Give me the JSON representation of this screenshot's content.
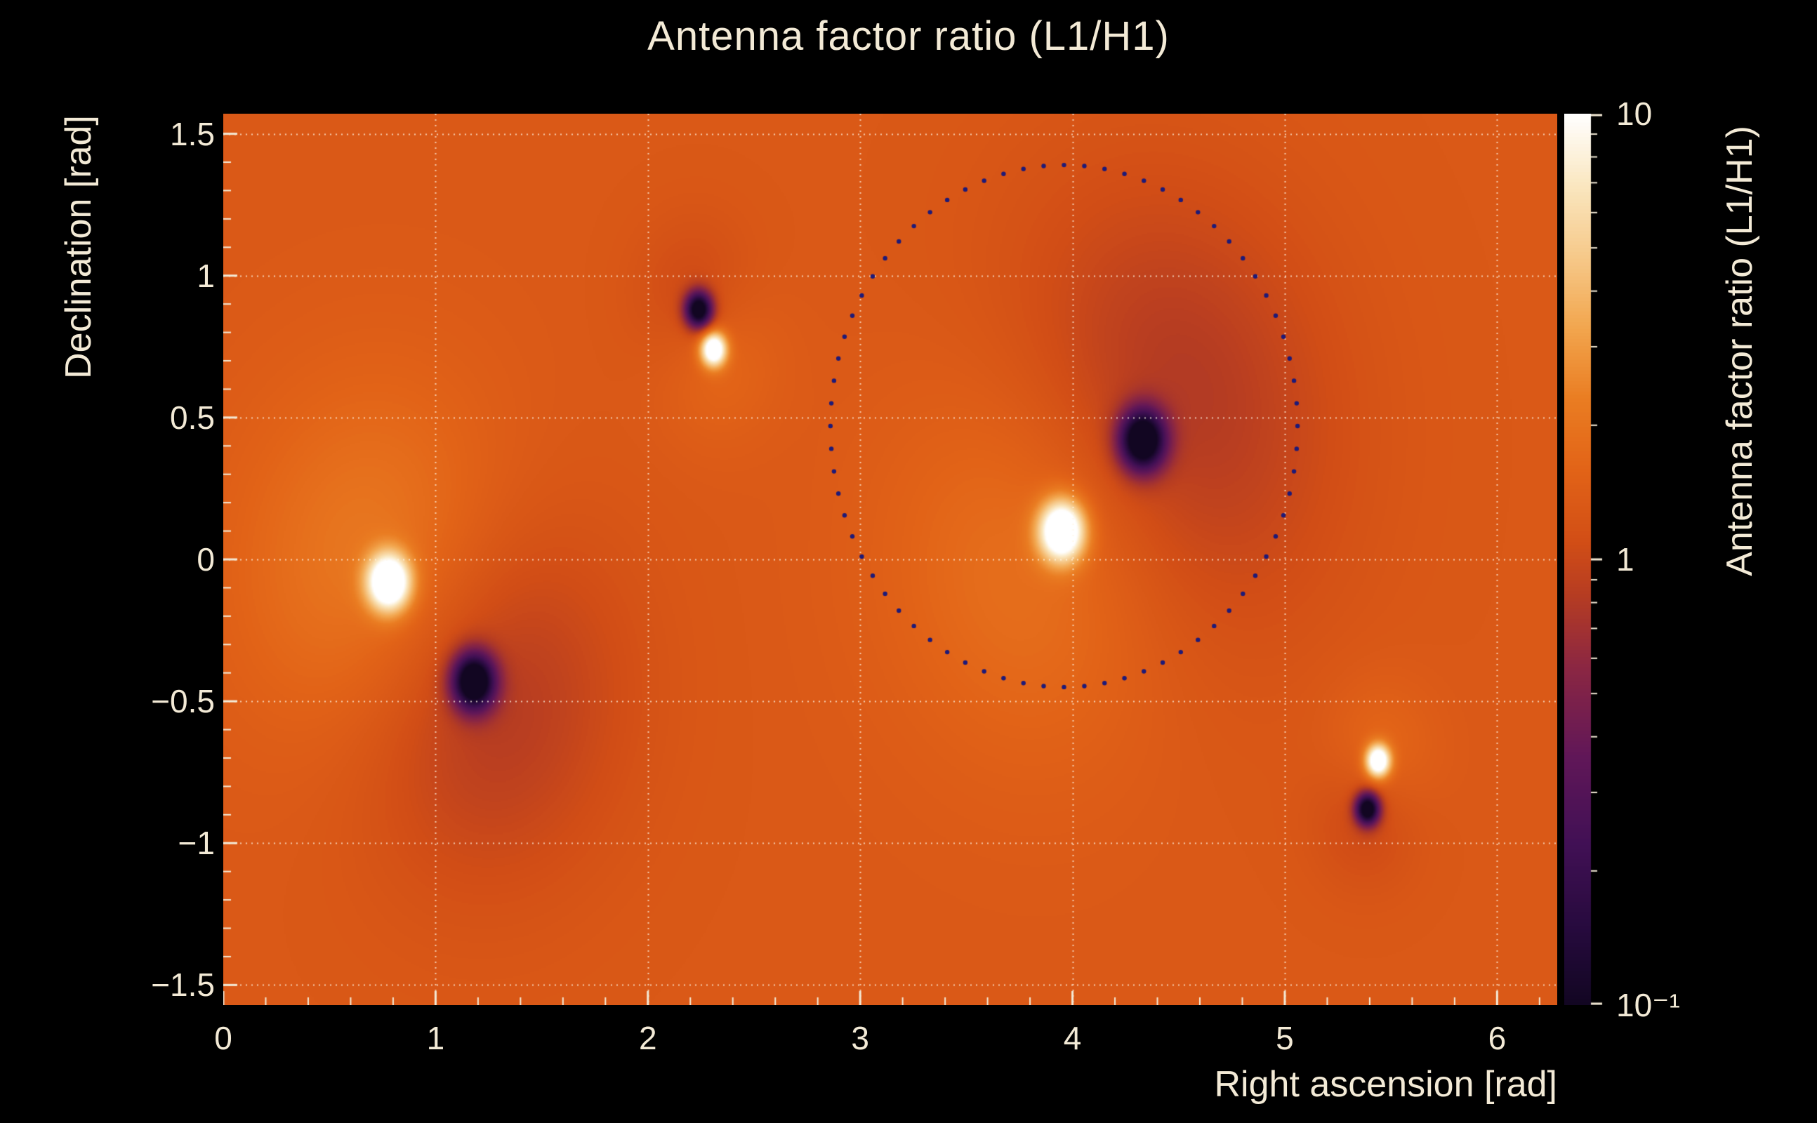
{
  "title": "Antenna factor ratio (L1/H1)",
  "colors": {
    "background": "#000000",
    "foreground_text": "#f3ead6",
    "grid": "#fff6e6",
    "tick": "#f3ead6",
    "contour_dots": "#1e1a78"
  },
  "chart_data": {
    "type": "heatmap",
    "title": "Antenna factor ratio (L1/H1)",
    "xlabel": "Right ascension [rad]",
    "ylabel": "Declination [rad]",
    "zlabel": "Antenna factor ratio (L1/H1)",
    "x_range": [
      0,
      6.2832
    ],
    "y_range": [
      -1.5708,
      1.5708
    ],
    "z_range": [
      0.1,
      10
    ],
    "z_scale": "log",
    "x_ticks": {
      "values": [
        0,
        1,
        2,
        3,
        4,
        5,
        6
      ],
      "labels": [
        "0",
        "1",
        "2",
        "3",
        "4",
        "5",
        "6"
      ],
      "minor_step": 0.2
    },
    "y_ticks": {
      "values": [
        1.5,
        1,
        0.5,
        0,
        -0.5,
        -1,
        -1.5
      ],
      "labels": [
        "1.5",
        "1",
        "0.5",
        "0",
        "−0.5",
        "−1",
        "−1.5"
      ],
      "minor_step": 0.1
    },
    "grid": {
      "x_lines": [
        1,
        2,
        3,
        4,
        5,
        6
      ],
      "y_lines": [
        -1.5,
        -1,
        -0.5,
        0,
        0.5,
        1,
        1.5
      ],
      "on": true
    },
    "colorbar": {
      "tick_values": [
        10,
        1,
        0.1
      ],
      "tick_labels": [
        "10",
        "1",
        "10⁻¹"
      ],
      "minor_tick_values": [
        0.2,
        0.3,
        0.4,
        0.5,
        0.6,
        0.7,
        0.8,
        0.9,
        2,
        3,
        4,
        5,
        6,
        7,
        8,
        9
      ]
    },
    "base_log10": 0.12,
    "features": [
      {
        "kind": "maximum",
        "x": 0.78,
        "y": -0.08,
        "core_amp": 1.3,
        "core_sigma": 0.07,
        "halo_amp": 0.3,
        "halo_sigma": 0.45
      },
      {
        "kind": "minimum",
        "x": 1.18,
        "y": -0.43,
        "core_amp": -1.4,
        "core_sigma": 0.07,
        "halo_amp": -0.3,
        "halo_sigma": 0.45
      },
      {
        "kind": "minimum",
        "x": 2.24,
        "y": 0.88,
        "core_amp": -1.3,
        "core_sigma": 0.045,
        "halo_amp": -0.18,
        "halo_sigma": 0.2
      },
      {
        "kind": "maximum",
        "x": 2.31,
        "y": 0.74,
        "core_amp": 1.2,
        "core_sigma": 0.042,
        "halo_amp": 0.18,
        "halo_sigma": 0.2
      },
      {
        "kind": "maximum",
        "x": 3.95,
        "y": 0.1,
        "core_amp": 1.3,
        "core_sigma": 0.075,
        "halo_amp": 0.32,
        "halo_sigma": 0.5
      },
      {
        "kind": "minimum",
        "x": 4.33,
        "y": 0.42,
        "core_amp": -1.4,
        "core_sigma": 0.075,
        "halo_amp": -0.35,
        "halo_sigma": 0.55
      },
      {
        "kind": "maximum",
        "x": 5.44,
        "y": -0.71,
        "core_amp": 1.2,
        "core_sigma": 0.04,
        "halo_amp": 0.16,
        "halo_sigma": 0.18
      },
      {
        "kind": "minimum",
        "x": 5.39,
        "y": -0.88,
        "core_amp": -1.3,
        "core_sigma": 0.04,
        "halo_amp": -0.16,
        "halo_sigma": 0.18
      }
    ],
    "contour_ellipse": {
      "cx": 3.96,
      "cy": 0.47,
      "rx": 1.1,
      "ry": 0.92,
      "n_dots": 72,
      "dot_radius": 3.2,
      "color": "#1e1a78"
    },
    "colormap": [
      {
        "t": 0.0,
        "c": "#120622"
      },
      {
        "t": 0.08,
        "c": "#250a3c"
      },
      {
        "t": 0.18,
        "c": "#411055"
      },
      {
        "t": 0.28,
        "c": "#611758"
      },
      {
        "t": 0.38,
        "c": "#8c2742"
      },
      {
        "t": 0.46,
        "c": "#b63c22"
      },
      {
        "t": 0.52,
        "c": "#d24e16"
      },
      {
        "t": 0.6,
        "c": "#e26317"
      },
      {
        "t": 0.68,
        "c": "#ea7d22"
      },
      {
        "t": 0.76,
        "c": "#f2a64e"
      },
      {
        "t": 0.84,
        "c": "#f6c98a"
      },
      {
        "t": 0.92,
        "c": "#fae7c0"
      },
      {
        "t": 1.0,
        "c": "#ffffff"
      }
    ]
  }
}
